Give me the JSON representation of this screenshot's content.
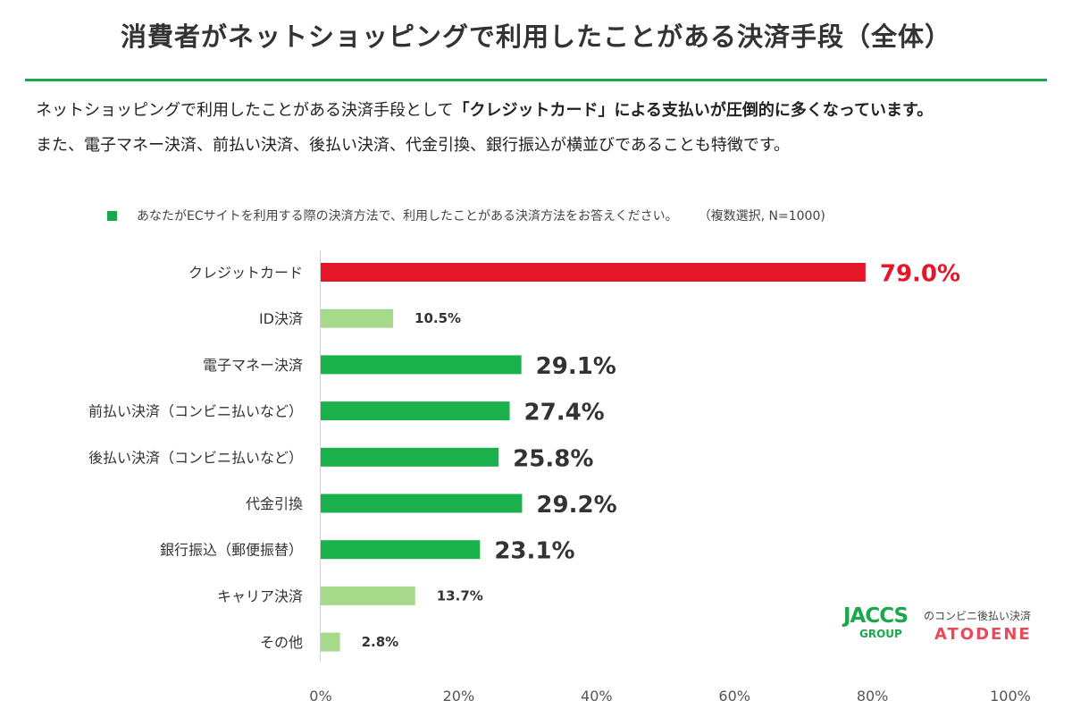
{
  "header": {
    "title": "消費者がネットショッピングで利用したことがある決済手段（全体）",
    "lead_line1_pre": "ネットショッピングで利用したことがある決済手段として",
    "lead_line1_bold": "「クレジットカード」による支払いが圧倒的に多くなっています。",
    "lead_line2": "また、電子マネー決済、前払い決済、後払い決済、代金引換、銀行振込が横並びであることも特徴です。"
  },
  "question": {
    "text": "あなたがECサイトを利用する際の決済方法で、利用したことがある決済方法をお答えください。",
    "note": "（複数選択, N=1000)"
  },
  "chart_data": {
    "type": "bar",
    "orientation": "horizontal",
    "categories": [
      "クレジットカード",
      "ID決済",
      "電子マネー決済",
      "前払い決済（コンビニ払いなど）",
      "後払い決済（コンビニ払いなど）",
      "代金引換",
      "銀行振込（郵便振替）",
      "キャリア決済",
      "その他"
    ],
    "values": [
      79.0,
      10.5,
      29.1,
      27.4,
      25.8,
      29.2,
      23.1,
      13.7,
      2.8
    ],
    "labels": [
      "79.0%",
      "10.5%",
      "29.1%",
      "27.4%",
      "25.8%",
      "29.2%",
      "23.1%",
      "13.7%",
      "2.8%"
    ],
    "xlim": [
      0,
      100
    ],
    "xticks": [
      "0%",
      "20%",
      "40%",
      "60%",
      "80%",
      "100%"
    ],
    "colors": {
      "highlight": "#e3162a",
      "main": "#1ab04b",
      "light": "#a6d98a"
    },
    "color_keys": [
      "highlight",
      "light",
      "main",
      "main",
      "main",
      "main",
      "main",
      "light",
      "light"
    ],
    "grid": false
  },
  "logo": {
    "brand": "JACCS",
    "group": "GROUP",
    "tagline": "のコンビニ後払い決済",
    "product": "ATODENE"
  }
}
